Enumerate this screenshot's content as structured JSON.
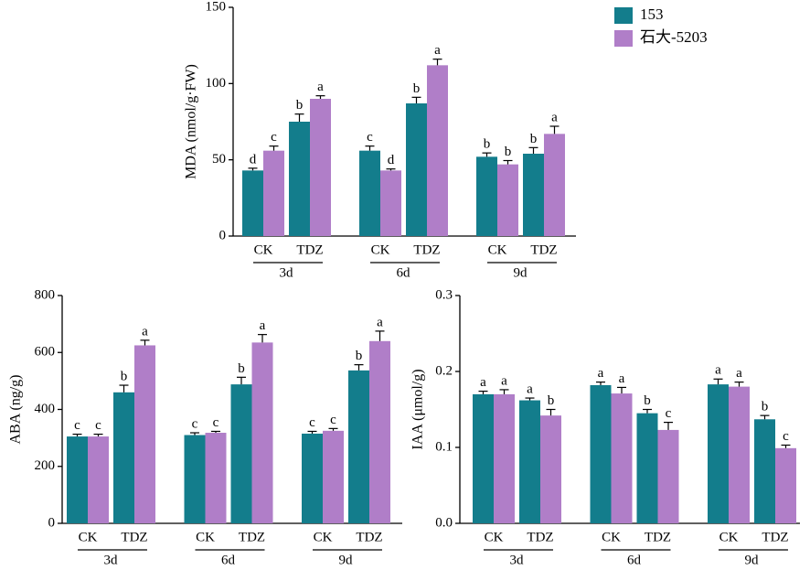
{
  "chart_data": [
    {
      "type": "bar",
      "y_label": "MDA (nmol/g·FW)",
      "categories": [
        "CK",
        "TDZ",
        "CK",
        "TDZ",
        "CK",
        "TDZ"
      ],
      "groups": [
        "3d",
        "6d",
        "9d"
      ],
      "ylim": [
        0,
        150
      ],
      "yticks": [
        0,
        50,
        100,
        150
      ],
      "series": [
        {
          "name": "153",
          "color": "#137d8c",
          "values": [
            43,
            75,
            56,
            87,
            52,
            54
          ],
          "errors": [
            1.5,
            5,
            3,
            4,
            2.5,
            4
          ],
          "letters": [
            "d",
            "b",
            "c",
            "b",
            "b",
            "b"
          ]
        },
        {
          "name": "石大-5203",
          "color": "#b07ec8",
          "values": [
            56,
            90,
            43,
            112,
            47,
            67
          ],
          "errors": [
            3,
            2,
            1,
            4,
            2.5,
            5
          ],
          "letters": [
            "c",
            "a",
            "d",
            "a",
            "b",
            "a"
          ]
        }
      ]
    },
    {
      "type": "bar",
      "y_label": "ABA (ng/g)",
      "categories": [
        "CK",
        "TDZ",
        "CK",
        "TDZ",
        "CK",
        "TDZ"
      ],
      "groups": [
        "3d",
        "6d",
        "9d"
      ],
      "ylim": [
        0,
        800
      ],
      "yticks": [
        0,
        200,
        400,
        600,
        800
      ],
      "series": [
        {
          "color": "#137d8c",
          "values": [
            305,
            460,
            310,
            488,
            315,
            537
          ],
          "errors": [
            8,
            25,
            8,
            25,
            8,
            20
          ],
          "letters": [
            "c",
            "b",
            "c",
            "b",
            "c",
            "b"
          ]
        },
        {
          "color": "#b07ec8",
          "values": [
            305,
            625,
            318,
            635,
            325,
            640
          ],
          "errors": [
            8,
            18,
            5,
            28,
            8,
            35
          ],
          "letters": [
            "c",
            "a",
            "c",
            "a",
            "c",
            "a"
          ]
        }
      ]
    },
    {
      "type": "bar",
      "y_label": "IAA (μmol/g)",
      "categories": [
        "CK",
        "TDZ",
        "CK",
        "TDZ",
        "CK",
        "TDZ"
      ],
      "groups": [
        "3d",
        "6d",
        "9d"
      ],
      "ylim": [
        0,
        0.3
      ],
      "yticks": [
        {
          "value": 0,
          "label": "0.0"
        },
        0.1,
        0.2,
        0.3
      ],
      "series": [
        {
          "color": "#137d8c",
          "values": [
            0.17,
            0.162,
            0.182,
            0.145,
            0.183,
            0.137
          ],
          "errors": [
            0.004,
            0.003,
            0.004,
            0.005,
            0.007,
            0.005
          ],
          "letters": [
            "a",
            "a",
            "a",
            "b",
            "a",
            "b"
          ]
        },
        {
          "color": "#b07ec8",
          "values": [
            0.17,
            0.142,
            0.171,
            0.123,
            0.18,
            0.099
          ],
          "errors": [
            0.006,
            0.008,
            0.008,
            0.01,
            0.006,
            0.004
          ],
          "letters": [
            "a",
            "b",
            "a",
            "c",
            "a",
            "c"
          ]
        }
      ]
    }
  ]
}
